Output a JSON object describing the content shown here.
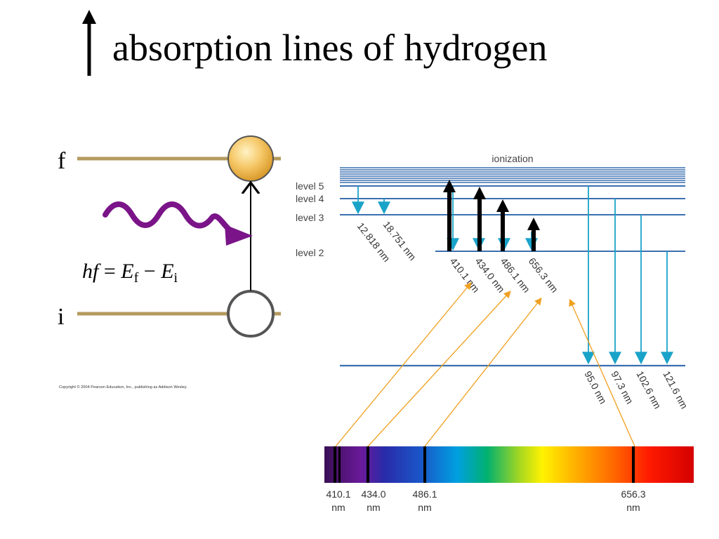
{
  "slide": {
    "title": "absorption lines of hydrogen"
  },
  "left_diagram": {
    "final_label": "f",
    "initial_label": "i",
    "equation": {
      "h": "h",
      "f": "f",
      "equals": " = ",
      "E": "E",
      "sub_f": "f",
      "minus": " − ",
      "sub_i": "i"
    },
    "copyright": "Copyright © 2004 Pearson Education, Inc., publishing as Addison Wesley.",
    "colors": {
      "level_line": "#b49a5e",
      "photon": "#7a1488",
      "electron_fill": "#f2c05a"
    }
  },
  "energy_diagram": {
    "ionization_label": "ionization",
    "levels": [
      "level 5",
      "level 4",
      "level 3",
      "level 2"
    ],
    "balmer_wavelengths": [
      "410.1 nm",
      "434.0 nm",
      "486.1 nm",
      "656.3 nm"
    ],
    "paschen_wavelengths": [
      "12.818 nm",
      "18.751 nm"
    ],
    "lyman_wavelengths": [
      "95.0 nm",
      "97.3 nm",
      "102.6 nm",
      "121.6 nm"
    ],
    "colors": {
      "level_line": "#3a6fb0",
      "transition": "#1aa3c9",
      "absorption_arrow": "#000000",
      "pointer": "#f0a020"
    }
  },
  "spectrum": {
    "lines": [
      {
        "value": "410.1",
        "unit": "nm"
      },
      {
        "value": "434.0",
        "unit": "nm"
      },
      {
        "value": "486.1",
        "unit": "nm"
      },
      {
        "value": "656.3",
        "unit": "nm"
      }
    ]
  }
}
